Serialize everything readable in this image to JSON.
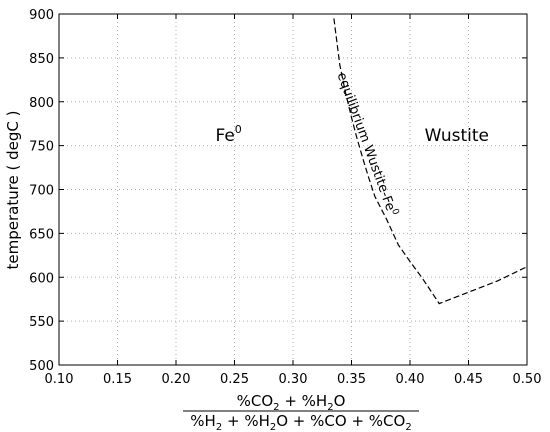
{
  "chart_data": {
    "type": "line",
    "xlim": [
      0.1,
      0.5
    ],
    "ylim": [
      500,
      900
    ],
    "x_ticks": [
      "0.10",
      "0.15",
      "0.20",
      "0.25",
      "0.30",
      "0.35",
      "0.40",
      "0.45",
      "0.50"
    ],
    "y_ticks": [
      "500",
      "550",
      "600",
      "650",
      "700",
      "750",
      "800",
      "850",
      "900"
    ],
    "grid": true,
    "ylabel": "temperature ( degC )",
    "xlabel": {
      "numerator": {
        "a": "%CO",
        "a_sub": "2",
        "b": " + %H",
        "b_sub": "2",
        "c": "O"
      },
      "denominator": {
        "a": "%H",
        "a_sub": "2",
        "b": " + %H",
        "b_sub": "2",
        "c": "O + %CO + %CO",
        "c_sub": "2"
      }
    },
    "annotations": {
      "fe0": {
        "text": "Fe",
        "sup": "0",
        "x": 0.245,
        "y": 755
      },
      "wustite": {
        "text": "Wustite",
        "x": 0.44,
        "y": 755
      },
      "curve_label": {
        "text": "equilibrium Wustite-Fe",
        "sup": "0",
        "x": 0.36,
        "y": 750
      }
    },
    "series": [
      {
        "style": "dashed",
        "color": "#000000",
        "points": [
          [
            0.335,
            895
          ],
          [
            0.34,
            842
          ],
          [
            0.345,
            810
          ],
          [
            0.35,
            782
          ],
          [
            0.355,
            757
          ],
          [
            0.36,
            734
          ],
          [
            0.365,
            712
          ],
          [
            0.37,
            692
          ],
          [
            0.38,
            666
          ],
          [
            0.39,
            637
          ],
          [
            0.4,
            618
          ],
          [
            0.41,
            600
          ],
          [
            0.42,
            580
          ],
          [
            0.425,
            570
          ],
          [
            0.45,
            583
          ],
          [
            0.475,
            596
          ],
          [
            0.5,
            612
          ]
        ]
      }
    ]
  }
}
